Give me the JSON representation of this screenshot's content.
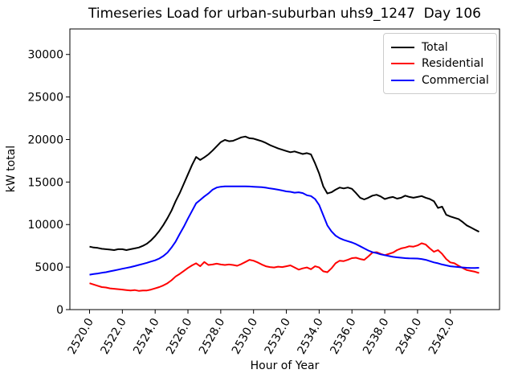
{
  "chart_data": {
    "type": "line",
    "title": "Timeseries Load for urban-suburban uhs9_1247  Day 106",
    "xlabel": "Hour of Year",
    "ylabel": "kW total",
    "xlim": [
      2518.8,
      2545.0
    ],
    "ylim": [
      0,
      33000
    ],
    "grid": false,
    "legend_position": "upper right",
    "x_ticks": [
      2520,
      2522,
      2524,
      2526,
      2528,
      2530,
      2532,
      2534,
      2536,
      2538,
      2540,
      2542
    ],
    "x_tick_labels": [
      "2520.0",
      "2522.0",
      "2524.0",
      "2526.0",
      "2528.0",
      "2530.0",
      "2532.0",
      "2534.0",
      "2536.0",
      "2538.0",
      "2540.0",
      "2542.0"
    ],
    "y_ticks": [
      0,
      5000,
      10000,
      15000,
      20000,
      25000,
      30000
    ],
    "y_tick_labels": [
      "0",
      "5000",
      "10000",
      "15000",
      "20000",
      "25000",
      "30000"
    ],
    "x": [
      2520.0,
      2520.25,
      2520.5,
      2520.75,
      2521.0,
      2521.25,
      2521.5,
      2521.75,
      2522.0,
      2522.25,
      2522.5,
      2522.75,
      2523.0,
      2523.25,
      2523.5,
      2523.75,
      2524.0,
      2524.25,
      2524.5,
      2524.75,
      2525.0,
      2525.25,
      2525.5,
      2525.75,
      2526.0,
      2526.25,
      2526.5,
      2526.75,
      2527.0,
      2527.25,
      2527.5,
      2527.75,
      2528.0,
      2528.25,
      2528.5,
      2528.75,
      2529.0,
      2529.25,
      2529.5,
      2529.75,
      2530.0,
      2530.25,
      2530.5,
      2530.75,
      2531.0,
      2531.25,
      2531.5,
      2531.75,
      2532.0,
      2532.25,
      2532.5,
      2532.75,
      2533.0,
      2533.25,
      2533.5,
      2533.75,
      2534.0,
      2534.25,
      2534.5,
      2534.75,
      2535.0,
      2535.25,
      2535.5,
      2535.75,
      2536.0,
      2536.25,
      2536.5,
      2536.75,
      2537.0,
      2537.25,
      2537.5,
      2537.75,
      2538.0,
      2538.25,
      2538.5,
      2538.75,
      2539.0,
      2539.25,
      2539.5,
      2539.75,
      2540.0,
      2540.25,
      2540.5,
      2540.75,
      2541.0,
      2541.25,
      2541.5,
      2541.75,
      2542.0,
      2542.25,
      2542.5,
      2542.75,
      2543.0,
      2543.25,
      2543.5,
      2543.75
    ],
    "series": [
      {
        "name": "Total",
        "color": "#000000",
        "values": [
          7400,
          7300,
          7250,
          7150,
          7100,
          7050,
          7000,
          7100,
          7100,
          7000,
          7100,
          7200,
          7300,
          7500,
          7750,
          8150,
          8650,
          9250,
          9950,
          10750,
          11650,
          12750,
          13700,
          14800,
          15900,
          17000,
          17950,
          17600,
          17900,
          18250,
          18700,
          19200,
          19700,
          19950,
          19800,
          19850,
          20050,
          20250,
          20350,
          20150,
          20100,
          19950,
          19800,
          19600,
          19350,
          19150,
          18950,
          18800,
          18650,
          18500,
          18600,
          18450,
          18300,
          18400,
          18250,
          17200,
          16000,
          14500,
          13650,
          13800,
          14100,
          14350,
          14250,
          14350,
          14200,
          13700,
          13150,
          12950,
          13150,
          13400,
          13500,
          13300,
          13000,
          13150,
          13250,
          13050,
          13150,
          13400,
          13250,
          13150,
          13250,
          13350,
          13150,
          13000,
          12750,
          11950,
          12100,
          11150,
          10950,
          10800,
          10650,
          10300,
          9900,
          9650,
          9400,
          9150
        ]
      },
      {
        "name": "Residential",
        "color": "#ff0000",
        "values": [
          3100,
          2950,
          2800,
          2650,
          2600,
          2500,
          2450,
          2400,
          2350,
          2300,
          2250,
          2300,
          2200,
          2250,
          2250,
          2350,
          2500,
          2650,
          2850,
          3100,
          3450,
          3900,
          4200,
          4550,
          4900,
          5200,
          5450,
          5100,
          5600,
          5250,
          5300,
          5400,
          5300,
          5250,
          5300,
          5250,
          5150,
          5350,
          5600,
          5850,
          5750,
          5550,
          5300,
          5100,
          5000,
          4950,
          5050,
          5000,
          5100,
          5200,
          4950,
          4700,
          4850,
          4950,
          4750,
          5100,
          4950,
          4500,
          4400,
          4850,
          5450,
          5750,
          5700,
          5850,
          6050,
          6100,
          5950,
          5850,
          6250,
          6700,
          6750,
          6550,
          6400,
          6550,
          6700,
          7000,
          7200,
          7300,
          7450,
          7400,
          7550,
          7800,
          7650,
          7200,
          6800,
          7000,
          6550,
          5950,
          5550,
          5450,
          5150,
          4900,
          4650,
          4550,
          4450,
          4300
        ]
      },
      {
        "name": "Commercial",
        "color": "#0000ff",
        "values": [
          4100,
          4180,
          4250,
          4330,
          4400,
          4500,
          4600,
          4700,
          4800,
          4900,
          5000,
          5120,
          5250,
          5370,
          5500,
          5650,
          5800,
          6000,
          6300,
          6700,
          7300,
          8000,
          8900,
          9750,
          10700,
          11600,
          12500,
          12900,
          13300,
          13650,
          14100,
          14350,
          14450,
          14500,
          14500,
          14500,
          14500,
          14500,
          14500,
          14480,
          14450,
          14420,
          14400,
          14330,
          14250,
          14180,
          14100,
          14000,
          13900,
          13850,
          13750,
          13800,
          13700,
          13450,
          13350,
          13000,
          12300,
          11100,
          9900,
          9200,
          8700,
          8400,
          8200,
          8050,
          7900,
          7700,
          7450,
          7200,
          6950,
          6750,
          6650,
          6500,
          6400,
          6300,
          6200,
          6150,
          6100,
          6050,
          6020,
          6010,
          6000,
          5950,
          5850,
          5700,
          5550,
          5450,
          5300,
          5200,
          5100,
          5050,
          5000,
          4950,
          4920,
          4900,
          4900,
          4920
        ]
      }
    ]
  }
}
